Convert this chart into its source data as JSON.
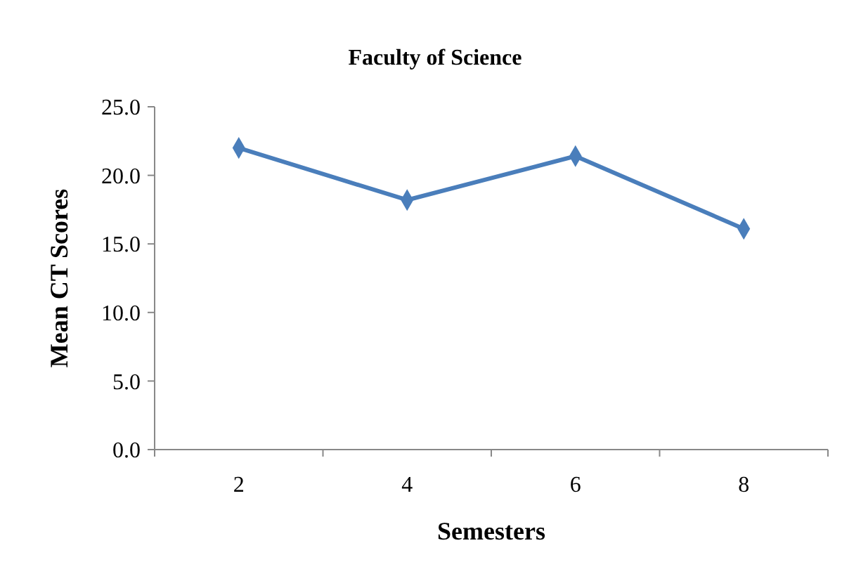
{
  "chart_data": {
    "type": "line",
    "title": "Faculty of Science",
    "xlabel": "Semesters",
    "ylabel": "Mean CT Scores",
    "categories": [
      "2",
      "4",
      "6",
      "8"
    ],
    "series": [
      {
        "color": "#4a7ebb",
        "values": [
          22.0,
          18.2,
          21.4,
          16.1
        ]
      }
    ],
    "ylim": [
      0,
      25
    ],
    "yticks": [
      {
        "value": 0,
        "label": "0.0"
      },
      {
        "value": 5,
        "label": "5.0"
      },
      {
        "value": 10,
        "label": "10.0"
      },
      {
        "value": 15,
        "label": "15.0"
      },
      {
        "value": 20,
        "label": "20.0"
      },
      {
        "value": 25,
        "label": "25.0"
      }
    ],
    "marker": "diamond",
    "line_style": "solid",
    "grid": false
  }
}
